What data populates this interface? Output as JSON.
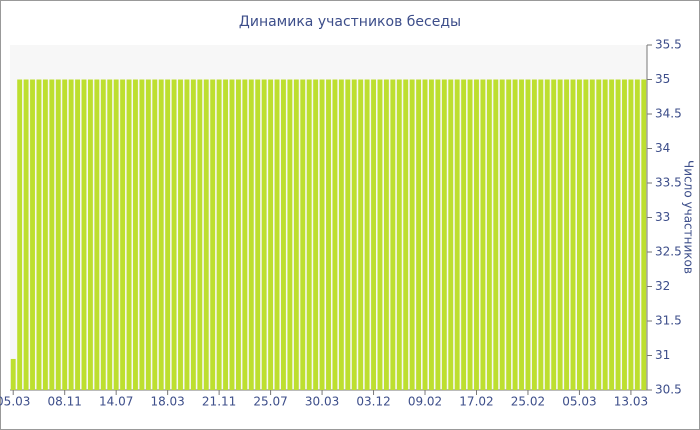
{
  "chart_data": {
    "type": "bar",
    "title": "Динамика участников беседы",
    "y_axis_label": "Число участников",
    "categories": [
      "05.03",
      null,
      null,
      null,
      null,
      null,
      null,
      null,
      "08.11",
      null,
      null,
      null,
      null,
      null,
      null,
      null,
      "14.07",
      null,
      null,
      null,
      null,
      null,
      null,
      null,
      "18.03",
      null,
      null,
      null,
      null,
      null,
      null,
      null,
      "21.11",
      null,
      null,
      null,
      null,
      null,
      null,
      null,
      "25.07",
      null,
      null,
      null,
      null,
      null,
      null,
      null,
      "30.03",
      null,
      null,
      null,
      null,
      null,
      null,
      null,
      "03.12",
      null,
      null,
      null,
      null,
      null,
      null,
      null,
      "09.02",
      null,
      null,
      null,
      null,
      null,
      null,
      null,
      "17.02",
      null,
      null,
      null,
      null,
      null,
      null,
      null,
      "25.02",
      null,
      null,
      null,
      null,
      null,
      null,
      null,
      "05.03",
      null,
      null,
      null,
      null,
      null,
      null,
      null,
      "13.03",
      null,
      null
    ],
    "values": [
      30.95,
      35,
      35,
      35,
      35,
      35,
      35,
      35,
      35,
      35,
      35,
      35,
      35,
      35,
      35,
      35,
      35,
      35,
      35,
      35,
      35,
      35,
      35,
      35,
      35,
      35,
      35,
      35,
      35,
      35,
      35,
      35,
      35,
      35,
      35,
      35,
      35,
      35,
      35,
      35,
      35,
      35,
      35,
      35,
      35,
      35,
      35,
      35,
      35,
      35,
      35,
      35,
      35,
      35,
      35,
      35,
      35,
      35,
      35,
      35,
      35,
      35,
      35,
      35,
      35,
      35,
      35,
      35,
      35,
      35,
      35,
      35,
      35,
      35,
      35,
      35,
      35,
      35,
      35,
      35,
      35,
      35,
      35,
      35,
      35,
      35,
      35,
      35,
      35,
      35,
      35,
      35,
      35,
      35,
      35,
      35,
      35,
      35,
      35
    ],
    "color": "#bddf2f",
    "ylim": [
      30.5,
      35.5
    ],
    "yticks": [
      30.5,
      31,
      31.5,
      32,
      32.5,
      33,
      33.5,
      34,
      34.5,
      35,
      35.5
    ]
  }
}
